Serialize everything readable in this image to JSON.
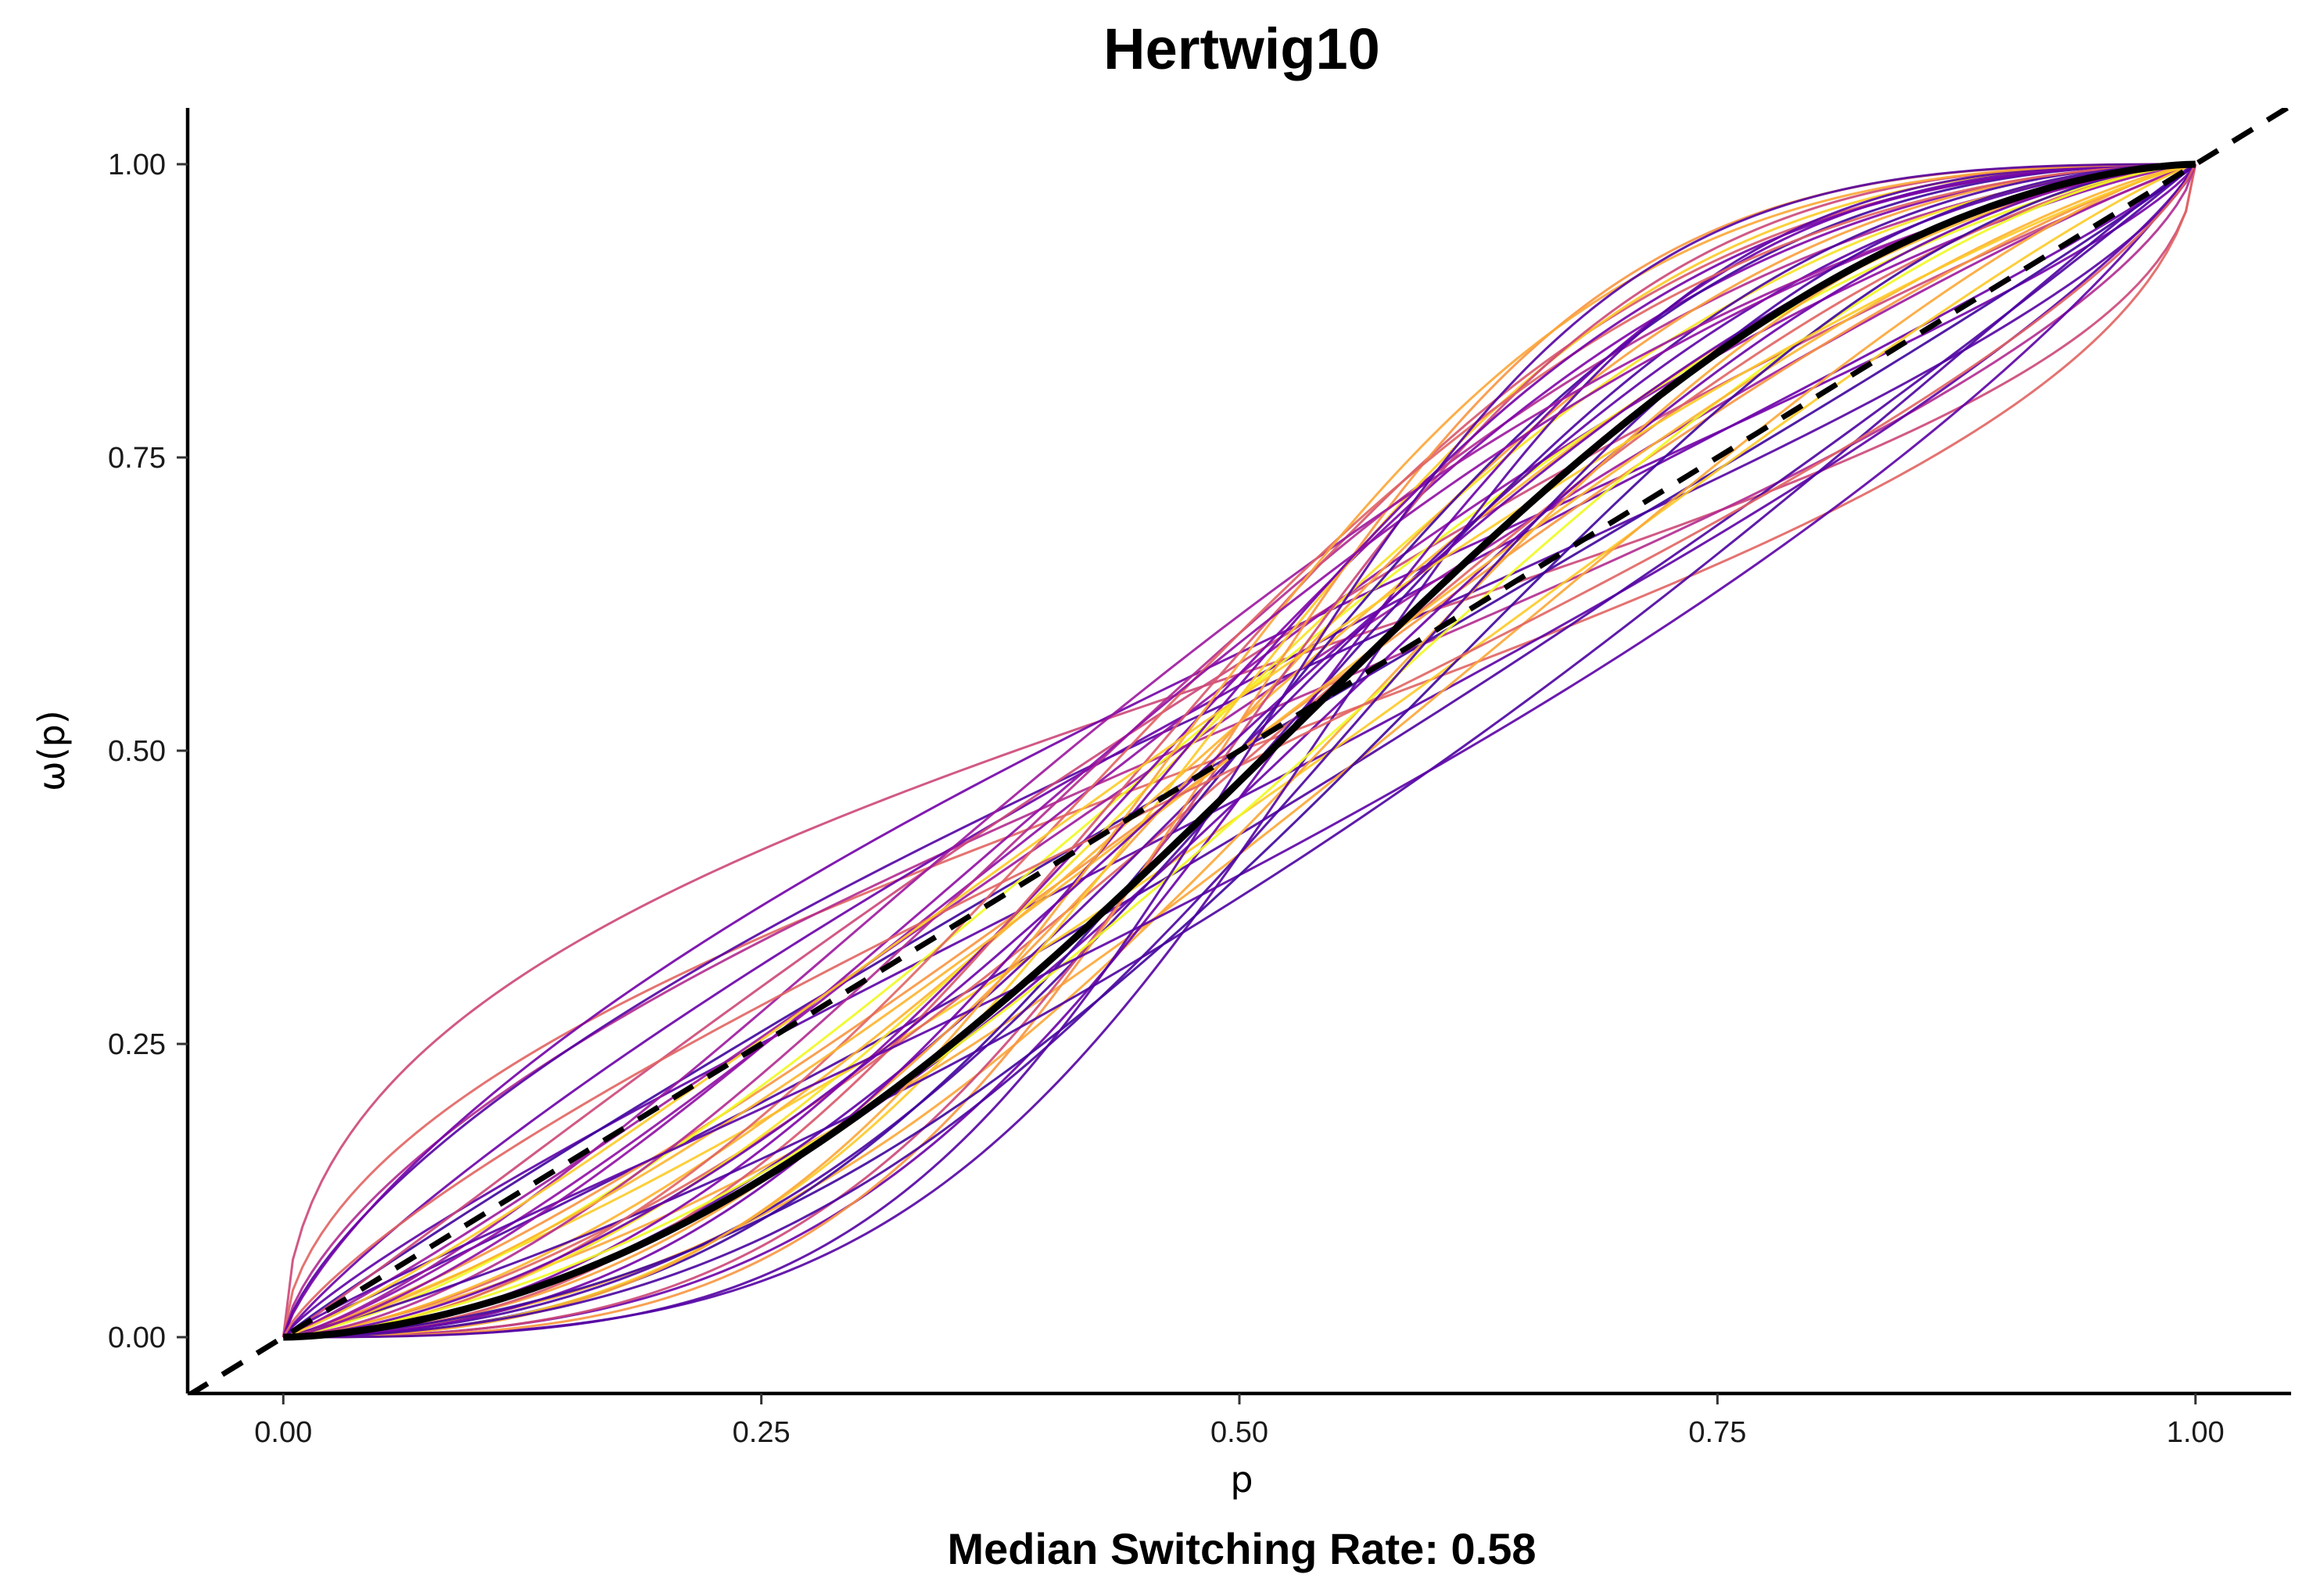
{
  "chart_data": {
    "type": "line",
    "title": "Hertwig10",
    "xlabel": "p",
    "ylabel": "ω(p)",
    "caption": "Median Switching Rate: 0.58",
    "xlim": [
      -0.05,
      1.05
    ],
    "ylim": [
      -0.048,
      1.048
    ],
    "x_ticks": [
      "0.00",
      "0.25",
      "0.50",
      "0.75",
      "1.00"
    ],
    "y_ticks": [
      "0.00",
      "0.25",
      "0.50",
      "0.75",
      "1.00"
    ],
    "grid": false,
    "legend": "none",
    "reference_line": {
      "style": "dashed",
      "color": "#000000",
      "description": "identity ω(p) = p"
    },
    "median_curve": {
      "style": "solid-thick",
      "color": "#000000",
      "gamma": 1.6,
      "delta": 0.9
    },
    "individual_curves": [
      {
        "gamma": 0.55,
        "delta": 1.3,
        "color": "#cc4778"
      },
      {
        "gamma": 0.6,
        "delta": 1.0,
        "color": "#e16462"
      },
      {
        "gamma": 0.7,
        "delta": 1.1,
        "color": "#b12a90"
      },
      {
        "gamma": 0.75,
        "delta": 1.2,
        "color": "#5402a3"
      },
      {
        "gamma": 0.8,
        "delta": 1.4,
        "color": "#7201a8"
      },
      {
        "gamma": 0.85,
        "delta": 0.85,
        "color": "#5c01a6"
      },
      {
        "gamma": 0.9,
        "delta": 1.25,
        "color": "#6a00a8"
      },
      {
        "gamma": 0.95,
        "delta": 1.0,
        "color": "#3e049c"
      },
      {
        "gamma": 1.0,
        "delta": 0.75,
        "color": "#4c02a1"
      },
      {
        "gamma": 1.05,
        "delta": 1.35,
        "color": "#cc4778"
      },
      {
        "gamma": 1.1,
        "delta": 1.15,
        "color": "#9c179e"
      },
      {
        "gamma": 1.15,
        "delta": 0.8,
        "color": "#fdca26"
      },
      {
        "gamma": 1.2,
        "delta": 1.0,
        "color": "#f89540"
      },
      {
        "gamma": 1.25,
        "delta": 1.3,
        "color": "#8f0da4"
      },
      {
        "gamma": 1.3,
        "delta": 0.7,
        "color": "#fca636"
      },
      {
        "gamma": 1.35,
        "delta": 1.2,
        "color": "#f0f921"
      },
      {
        "gamma": 1.4,
        "delta": 0.95,
        "color": "#e16462"
      },
      {
        "gamma": 1.45,
        "delta": 1.1,
        "color": "#fdb42f"
      },
      {
        "gamma": 1.5,
        "delta": 1.5,
        "color": "#b12a90"
      },
      {
        "gamma": 1.55,
        "delta": 0.85,
        "color": "#6a00a8"
      },
      {
        "gamma": 1.6,
        "delta": 1.2,
        "color": "#f7e225"
      },
      {
        "gamma": 1.65,
        "delta": 1.0,
        "color": "#5c01a6"
      },
      {
        "gamma": 1.7,
        "delta": 0.75,
        "color": "#fca636"
      },
      {
        "gamma": 1.75,
        "delta": 1.3,
        "color": "#7e03a8"
      },
      {
        "gamma": 1.8,
        "delta": 1.1,
        "color": "#fb9f3a"
      },
      {
        "gamma": 1.85,
        "delta": 0.9,
        "color": "#4903a0"
      },
      {
        "gamma": 1.9,
        "delta": 1.4,
        "color": "#d8576b"
      },
      {
        "gamma": 2.0,
        "delta": 1.0,
        "color": "#3e049c"
      },
      {
        "gamma": 2.1,
        "delta": 1.2,
        "color": "#fdca26"
      },
      {
        "gamma": 2.2,
        "delta": 0.85,
        "color": "#6a00a8"
      },
      {
        "gamma": 2.3,
        "delta": 1.05,
        "color": "#cc4778"
      },
      {
        "gamma": 2.4,
        "delta": 0.7,
        "color": "#5402a3"
      },
      {
        "gamma": 2.5,
        "delta": 1.1,
        "color": "#f89540"
      },
      {
        "gamma": 1.3,
        "delta": 1.6,
        "color": "#9c179e"
      },
      {
        "gamma": 1.1,
        "delta": 0.6,
        "color": "#4c02a1"
      },
      {
        "gamma": 1.7,
        "delta": 1.5,
        "color": "#e16462"
      },
      {
        "gamma": 1.45,
        "delta": 0.8,
        "color": "#f0f921"
      },
      {
        "gamma": 1.25,
        "delta": 1.0,
        "color": "#fdb42f"
      },
      {
        "gamma": 1.95,
        "delta": 1.25,
        "color": "#7201a8"
      },
      {
        "gamma": 0.9,
        "delta": 0.65,
        "color": "#5c01a6"
      },
      {
        "gamma": 1.6,
        "delta": 0.65,
        "color": "#3e049c"
      },
      {
        "gamma": 2.2,
        "delta": 1.35,
        "color": "#fca636"
      },
      {
        "gamma": 1.35,
        "delta": 1.45,
        "color": "#8f0da4"
      },
      {
        "gamma": 0.8,
        "delta": 0.95,
        "color": "#e16462"
      },
      {
        "gamma": 1.15,
        "delta": 1.2,
        "color": "#fdca26"
      },
      {
        "gamma": 1.5,
        "delta": 1.05,
        "color": "#6a00a8"
      },
      {
        "gamma": 1.85,
        "delta": 0.7,
        "color": "#4903a0"
      },
      {
        "gamma": 2.6,
        "delta": 0.95,
        "color": "#5402a3"
      }
    ]
  }
}
